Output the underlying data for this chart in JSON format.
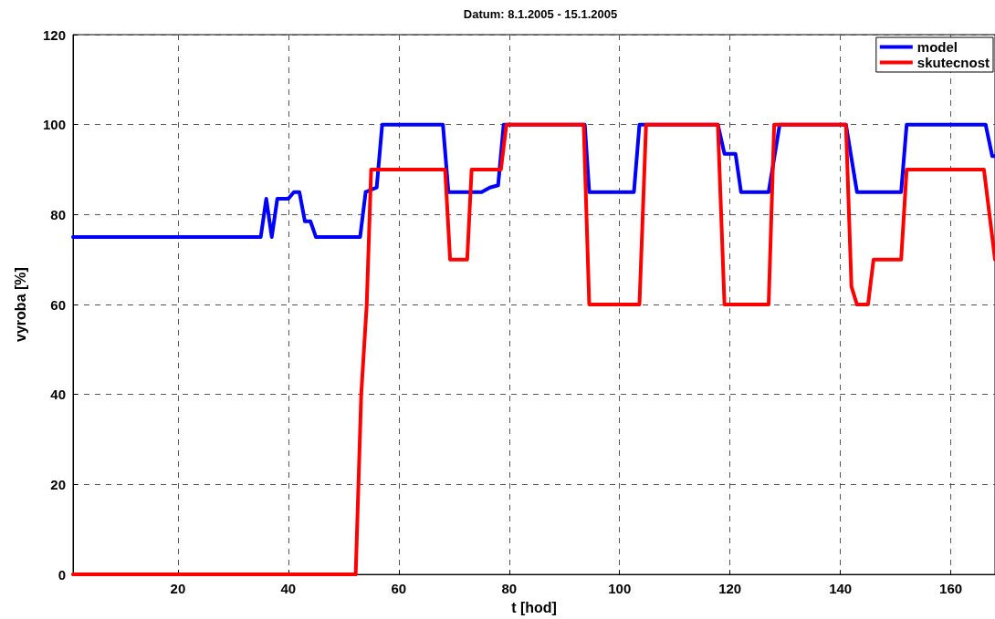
{
  "chart_data": {
    "type": "line",
    "title": "Datum: 8.1.2005 - 15.1.2005",
    "xlabel": "t [hod]",
    "ylabel": "vyroba [%]",
    "xlim": [
      1,
      168
    ],
    "xticks": [
      20,
      40,
      60,
      80,
      100,
      120,
      140,
      160
    ],
    "ylim": [
      0,
      120
    ],
    "yticks": [
      0,
      20,
      40,
      60,
      80,
      100,
      120
    ],
    "grid": true,
    "legend": "top right",
    "marker": "none",
    "line_style": "solid",
    "series": [
      {
        "name": "model",
        "color": "#0000ff",
        "x": [
          1,
          35,
          36,
          37,
          38,
          40,
          41,
          42,
          43,
          44,
          45,
          53,
          54,
          56,
          57,
          68,
          69,
          75,
          76.5,
          78,
          79,
          93.7,
          94.5,
          102.6,
          103.6,
          117.8,
          119,
          121,
          122,
          127,
          129,
          141,
          143,
          151,
          152,
          166.3,
          167.5,
          168
        ],
        "values": [
          75,
          75,
          83.5,
          75,
          83.5,
          83.5,
          85,
          85,
          78.5,
          78.5,
          75,
          75,
          85,
          86,
          100,
          100,
          85,
          85,
          86,
          86.5,
          100,
          100,
          85,
          85,
          100,
          100,
          93.5,
          93.5,
          85,
          85,
          100,
          100,
          85,
          85,
          100,
          100,
          93,
          93
        ]
      },
      {
        "name": "skutecnost",
        "color": "#ff0000",
        "x": [
          1,
          52.2,
          53.2,
          54.2,
          55,
          68.4,
          69.3,
          72.4,
          73.2,
          78.5,
          79.5,
          93.5,
          94.5,
          103.6,
          104.8,
          117.8,
          119,
          127,
          128,
          141,
          142,
          143,
          145,
          146,
          151,
          152,
          166,
          168
        ],
        "values": [
          0,
          0,
          40,
          60,
          90,
          90,
          70,
          70,
          90,
          90,
          100,
          100,
          60,
          60,
          100,
          100,
          60,
          60,
          100,
          100,
          64,
          60,
          60,
          70,
          70,
          90,
          90,
          70
        ]
      }
    ]
  }
}
